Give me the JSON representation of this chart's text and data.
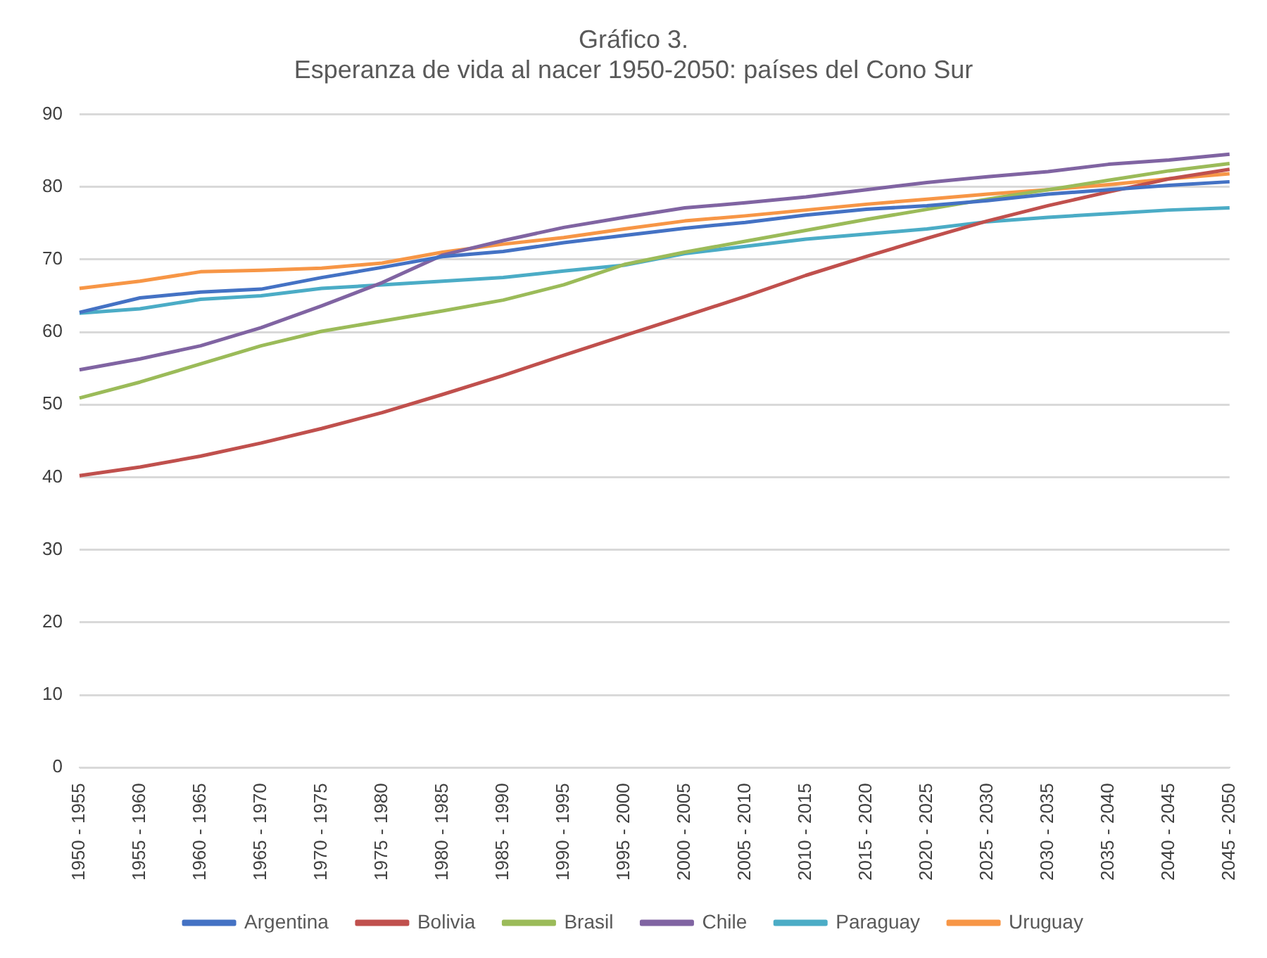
{
  "chart_data": {
    "type": "line",
    "title": "Gráfico 3.\nEsperanza de vida al nacer 1950-2050: países del Cono Sur",
    "categories": [
      "1950 - 1955",
      "1955 - 1960",
      "1960 - 1965",
      "1965 - 1970",
      "1970 - 1975",
      "1975 - 1980",
      "1980 - 1985",
      "1985 - 1990",
      "1990 - 1995",
      "1995 - 2000",
      "2000 - 2005",
      "2005 - 2010",
      "2010 - 2015",
      "2015 - 2020",
      "2020 - 2025",
      "2025 - 2030",
      "2030 - 2035",
      "2035 - 2040",
      "2040 - 2045",
      "2045 - 2050"
    ],
    "series": [
      {
        "name": "Argentina",
        "color": "#4472c4",
        "values": [
          62.7,
          64.7,
          65.5,
          65.9,
          67.5,
          68.9,
          70.4,
          71.1,
          72.3,
          73.3,
          74.3,
          75.1,
          76.1,
          76.9,
          77.4,
          78.1,
          79.0,
          79.6,
          80.2,
          80.7
        ]
      },
      {
        "name": "Bolivia",
        "color": "#c0504d",
        "values": [
          40.2,
          41.4,
          42.9,
          44.7,
          46.7,
          48.9,
          51.4,
          54.0,
          56.8,
          59.5,
          62.2,
          64.9,
          67.8,
          70.4,
          72.9,
          75.3,
          77.4,
          79.3,
          81.1,
          82.4
        ]
      },
      {
        "name": "Brasil",
        "color": "#9bbb59",
        "values": [
          50.9,
          53.1,
          55.6,
          58.1,
          60.1,
          61.5,
          62.9,
          64.4,
          66.5,
          69.3,
          71.0,
          72.5,
          74.0,
          75.5,
          76.9,
          78.3,
          79.6,
          80.9,
          82.2,
          83.2
        ]
      },
      {
        "name": "Chile",
        "color": "#8064a2",
        "values": [
          54.8,
          56.3,
          58.1,
          60.6,
          63.6,
          66.8,
          70.6,
          72.6,
          74.4,
          75.8,
          77.1,
          77.8,
          78.6,
          79.6,
          80.6,
          81.4,
          82.1,
          83.1,
          83.7,
          84.5
        ]
      },
      {
        "name": "Paraguay",
        "color": "#4bacc6",
        "values": [
          62.6,
          63.2,
          64.5,
          65.0,
          66.0,
          66.5,
          67.0,
          67.5,
          68.4,
          69.2,
          70.8,
          71.8,
          72.8,
          73.5,
          74.2,
          75.2,
          75.8,
          76.3,
          76.8,
          77.1
        ]
      },
      {
        "name": "Uruguay",
        "color": "#f79646",
        "values": [
          66.0,
          67.0,
          68.3,
          68.5,
          68.8,
          69.5,
          71.0,
          72.1,
          73.0,
          74.2,
          75.3,
          76.0,
          76.8,
          77.6,
          78.3,
          79.0,
          79.6,
          80.3,
          81.1,
          81.8
        ]
      }
    ],
    "ylim": [
      0,
      90
    ],
    "yticks": [
      0,
      10,
      20,
      30,
      40,
      50,
      60,
      70,
      80,
      90
    ],
    "grid": "y",
    "legend": "bottom",
    "marker": "none",
    "line_style": "solid"
  }
}
